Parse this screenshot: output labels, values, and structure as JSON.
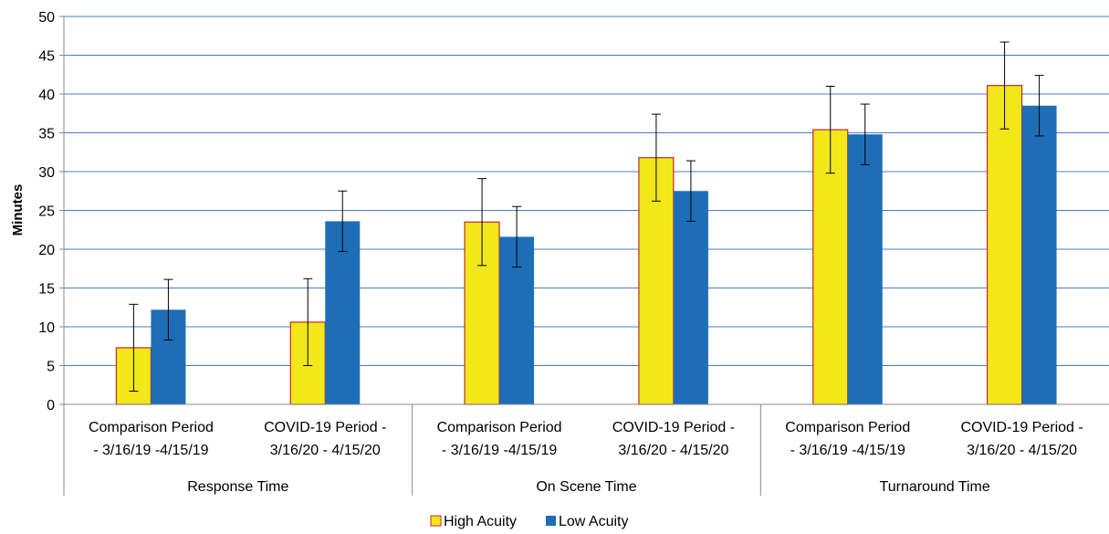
{
  "chart_data": {
    "type": "bar",
    "ylabel": "Minutes",
    "ylim": [
      0,
      50
    ],
    "yticks": [
      0,
      5,
      10,
      15,
      20,
      25,
      30,
      35,
      40,
      45,
      50
    ],
    "grid": true,
    "legend_position": "bottom",
    "groups": [
      {
        "name": "Response Time",
        "periods": [
          [
            "Comparison Period",
            "- 3/16/19 -4/15/19"
          ],
          [
            "COVID-19 Period -",
            "3/16/20 - 4/15/20"
          ]
        ]
      },
      {
        "name": "On Scene Time",
        "periods": [
          [
            "Comparison Period",
            "- 3/16/19 -4/15/19"
          ],
          [
            "COVID-19 Period -",
            "3/16/20 - 4/15/20"
          ]
        ]
      },
      {
        "name": "Turnaround Time",
        "periods": [
          [
            "Comparison Period",
            "- 3/16/19 -4/15/19"
          ],
          [
            "COVID-19 Period -",
            "3/16/20 - 4/15/20"
          ]
        ]
      }
    ],
    "series": [
      {
        "name": "High Acuity",
        "color": "#f2e719",
        "border": "#c0282d",
        "values": [
          7.3,
          10.6,
          23.5,
          31.8,
          35.4,
          41.1
        ],
        "error_low": [
          1.7,
          5.0,
          17.9,
          26.2,
          29.8,
          35.5
        ],
        "error_high": [
          12.9,
          16.2,
          29.1,
          37.4,
          41.0,
          46.7
        ]
      },
      {
        "name": "Low Acuity",
        "color": "#1e6eb7",
        "border": "#1e6eb7",
        "values": [
          12.2,
          23.6,
          21.6,
          27.5,
          34.8,
          38.5
        ],
        "error_low": [
          8.3,
          19.7,
          17.7,
          23.6,
          30.9,
          34.6
        ],
        "error_high": [
          16.1,
          27.5,
          25.5,
          31.4,
          38.7,
          42.4
        ]
      }
    ]
  }
}
